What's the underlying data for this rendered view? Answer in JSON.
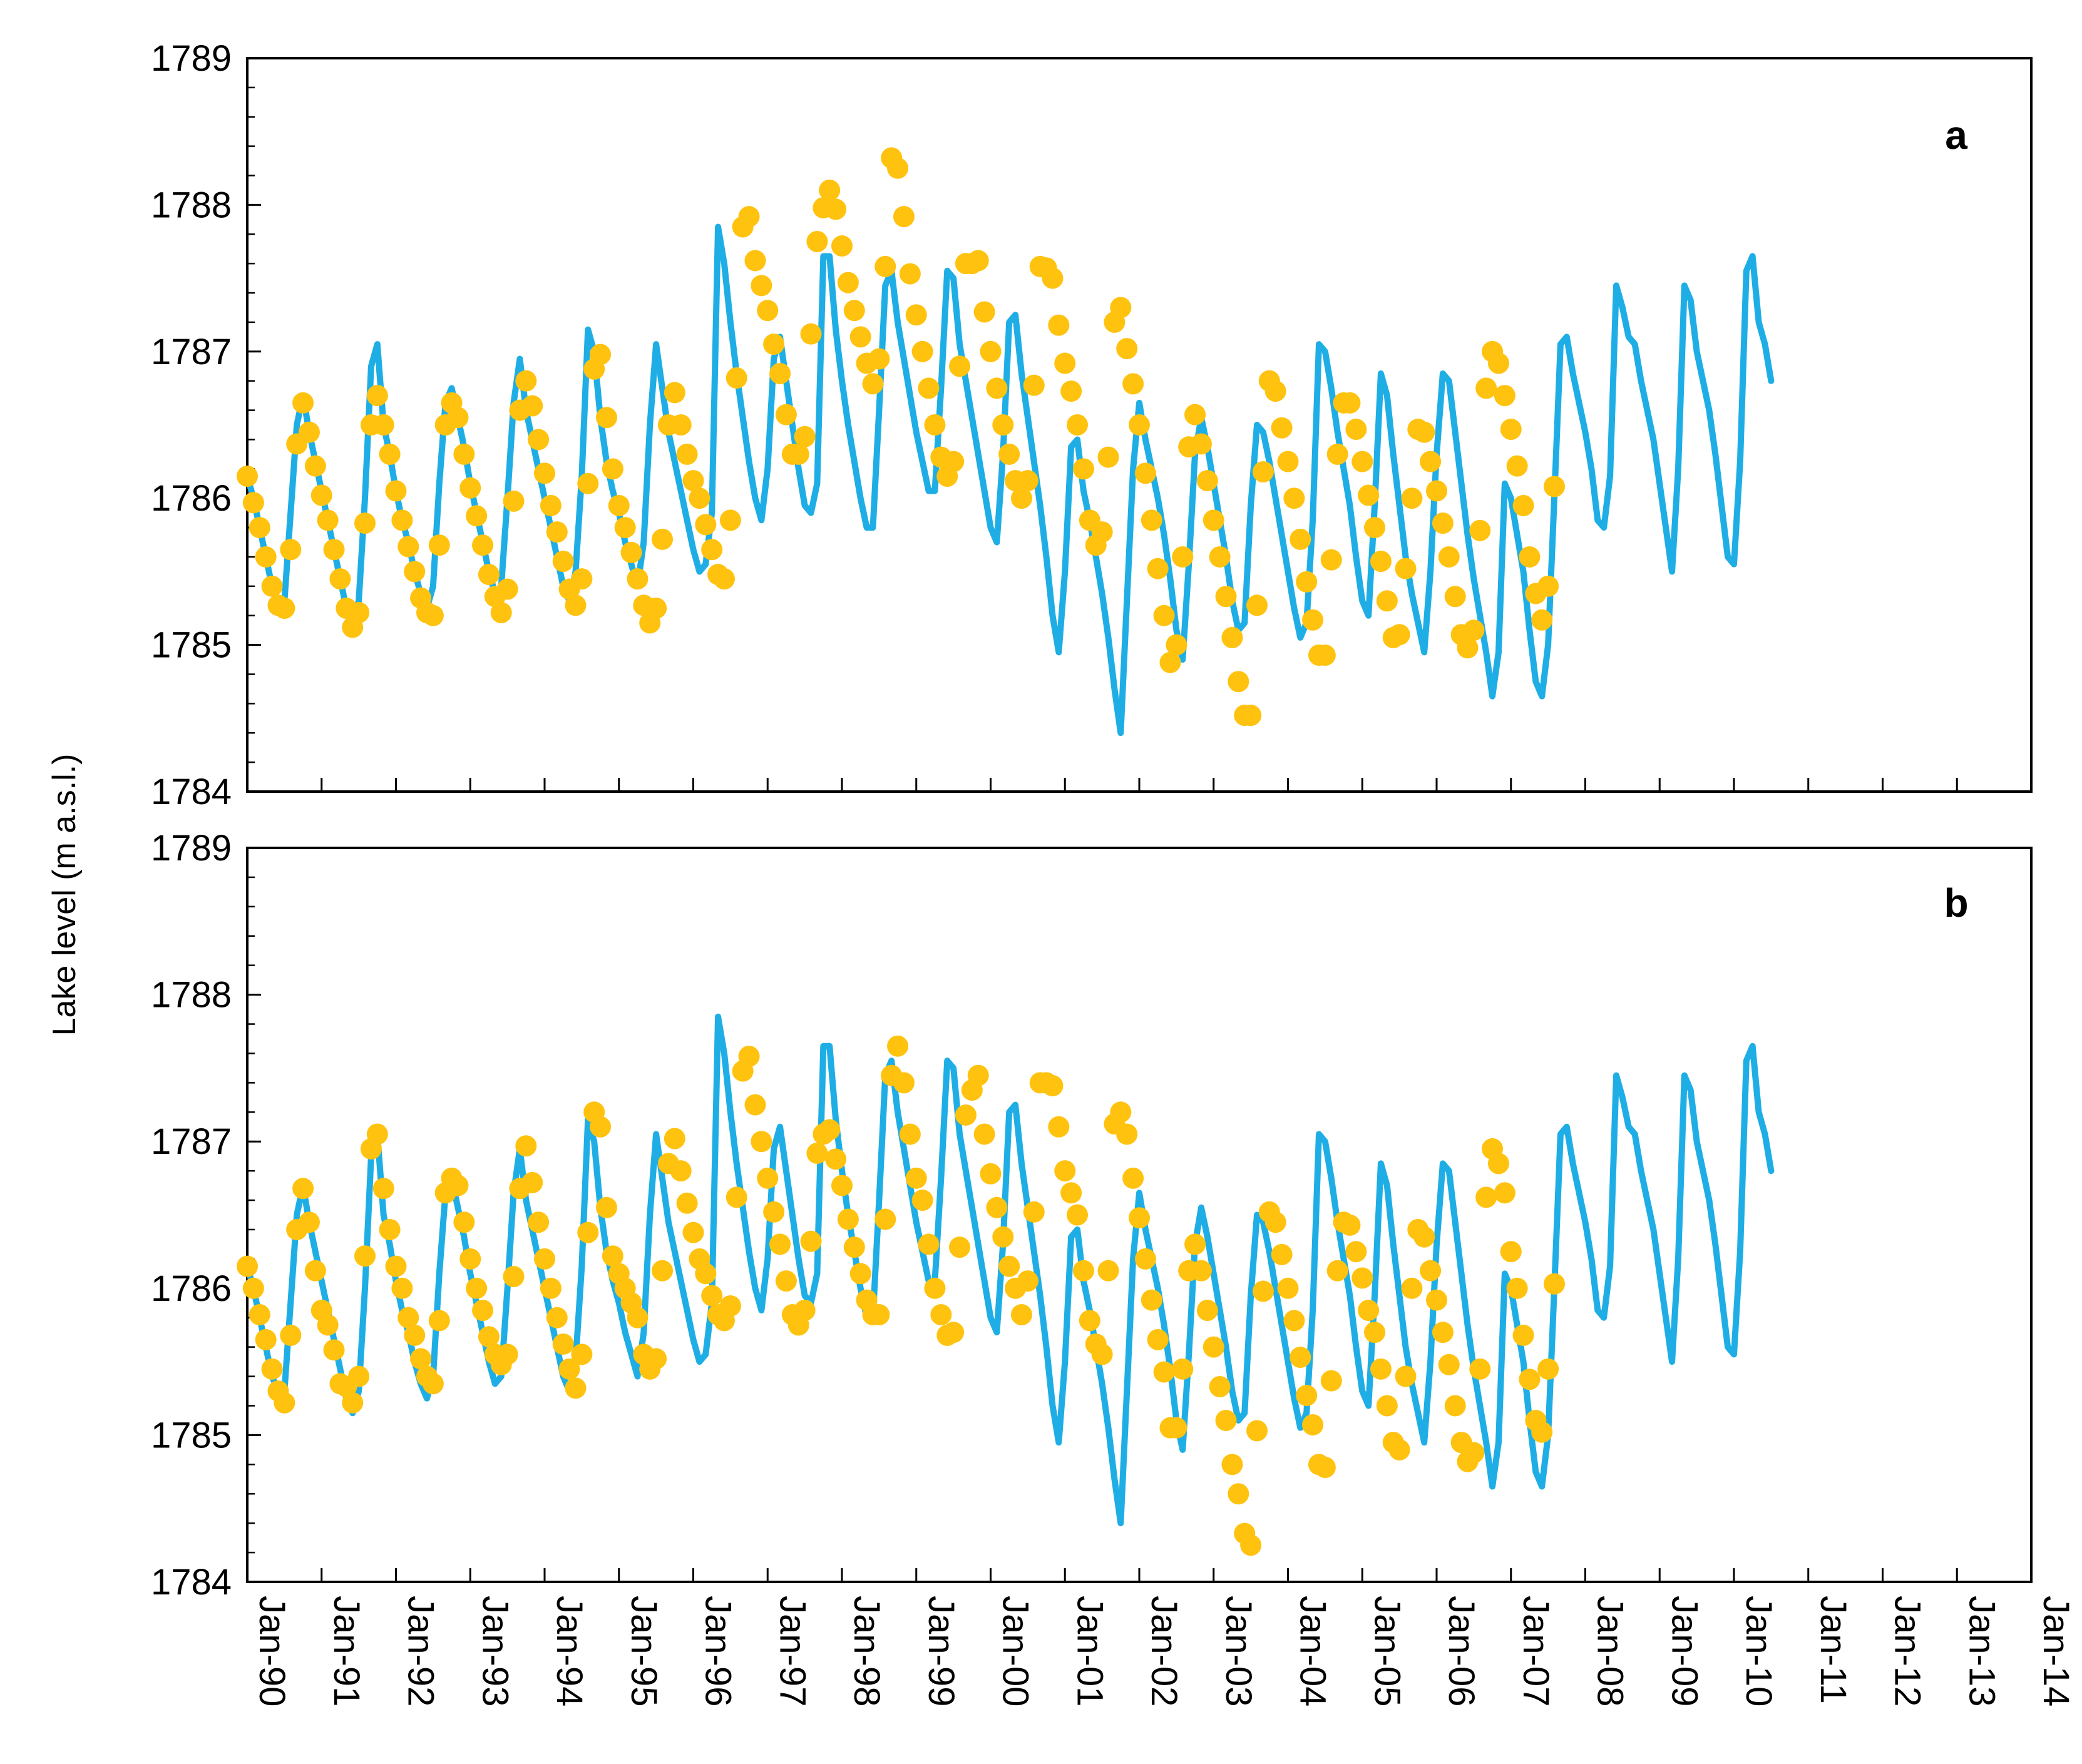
{
  "chart_data": {
    "type": "line",
    "ylabel": "Lake level (m a.s.l.)",
    "ylim": [
      1784,
      1789
    ],
    "yticks": [
      1784,
      1785,
      1786,
      1787,
      1788,
      1789
    ],
    "ytick_labels": [
      "1784",
      "1785",
      "1786",
      "1787",
      "1788",
      "1789"
    ],
    "xlim": [
      1990.0,
      2014.0
    ],
    "xtick_values": [
      1990,
      1991,
      1992,
      1993,
      1994,
      1995,
      1996,
      1997,
      1998,
      1999,
      2000,
      2001,
      2002,
      2003,
      2004,
      2005,
      2006,
      2007,
      2008,
      2009,
      2010,
      2011,
      2012,
      2013,
      2014
    ],
    "xtick_labels": [
      "Jan-90",
      "Jan-91",
      "Jan-92",
      "Jan-93",
      "Jan-94",
      "Jan-95",
      "Jan-96",
      "Jan-97",
      "Jan-98",
      "Jan-99",
      "Jan-00",
      "Jan-01",
      "Jan-02",
      "Jan-03",
      "Jan-04",
      "Jan-05",
      "Jan-06",
      "Jan-07",
      "Jan-08",
      "Jan-09",
      "Jan-10",
      "Jan-11",
      "Jan-12",
      "Jan-13",
      "Jan-14"
    ],
    "colors": {
      "line": "#1EAEE5",
      "points": "#FFC20E",
      "axis": "#000000"
    },
    "simulated_monthly": [
      1786.15,
      1786.0,
      1785.8,
      1785.6,
      1785.4,
      1785.3,
      1785.3,
      1785.9,
      1786.5,
      1786.7,
      1786.45,
      1786.25,
      1786.05,
      1785.85,
      1785.65,
      1785.45,
      1785.25,
      1785.15,
      1785.3,
      1786.0,
      1786.9,
      1787.05,
      1786.5,
      1786.3,
      1786.05,
      1785.85,
      1785.7,
      1785.5,
      1785.35,
      1785.25,
      1785.4,
      1786.1,
      1786.65,
      1786.75,
      1786.55,
      1786.35,
      1786.1,
      1785.9,
      1785.7,
      1785.5,
      1785.35,
      1785.4,
      1786.0,
      1786.65,
      1786.95,
      1786.6,
      1786.4,
      1786.2,
      1786.0,
      1785.8,
      1785.6,
      1785.4,
      1785.3,
      1785.5,
      1786.15,
      1787.15,
      1787.0,
      1786.55,
      1786.25,
      1786.05,
      1785.9,
      1785.7,
      1785.55,
      1785.4,
      1785.7,
      1786.5,
      1787.05,
      1786.75,
      1786.45,
      1786.25,
      1786.05,
      1785.85,
      1785.65,
      1785.5,
      1785.55,
      1785.9,
      1787.85,
      1787.6,
      1787.2,
      1786.85,
      1786.55,
      1786.25,
      1786.0,
      1785.85,
      1786.2,
      1786.95,
      1787.1,
      1786.8,
      1786.5,
      1786.2,
      1785.95,
      1785.9,
      1786.1,
      1787.65,
      1787.65,
      1787.15,
      1786.8,
      1786.5,
      1786.25,
      1786.0,
      1785.8,
      1785.8,
      1786.6,
      1787.45,
      1787.55,
      1787.2,
      1786.95,
      1786.7,
      1786.45,
      1786.25,
      1786.05,
      1786.05,
      1786.75,
      1787.55,
      1787.5,
      1787.05,
      1786.8,
      1786.55,
      1786.3,
      1786.05,
      1785.8,
      1785.7,
      1786.3,
      1787.2,
      1787.25,
      1786.85,
      1786.55,
      1786.25,
      1785.95,
      1785.6,
      1785.2,
      1784.95,
      1785.5,
      1786.35,
      1786.4,
      1786.05,
      1785.85,
      1785.6,
      1785.35,
      1785.05,
      1784.7,
      1784.4,
      1785.3,
      1786.2,
      1786.65,
      1786.4,
      1786.2,
      1786.0,
      1785.75,
      1785.45,
      1785.1,
      1784.9,
      1785.55,
      1786.3,
      1786.55,
      1786.35,
      1786.1,
      1785.85,
      1785.6,
      1785.3,
      1785.1,
      1785.15,
      1785.95,
      1786.5,
      1786.45,
      1786.25,
      1786.0,
      1785.75,
      1785.5,
      1785.25,
      1785.05,
      1785.15,
      1785.85,
      1787.05,
      1787.0,
      1786.75,
      1786.45,
      1786.2,
      1785.95,
      1785.6,
      1785.3,
      1785.2,
      1785.95,
      1786.85,
      1786.7,
      1786.3,
      1785.95,
      1785.6,
      1785.35,
      1785.15,
      1784.95,
      1785.5,
      1786.3,
      1786.85,
      1786.8,
      1786.45,
      1786.1,
      1785.75,
      1785.45,
      1785.2,
      1784.95,
      1784.65,
      1784.95,
      1786.1,
      1786.0,
      1785.75,
      1785.5,
      1785.1,
      1784.75,
      1784.65,
      1785.0,
      1786.0,
      1787.05,
      1787.1,
      1786.85,
      1786.65,
      1786.45,
      1786.2,
      1785.85,
      1785.8,
      1786.15,
      1787.45,
      1787.3,
      1787.1,
      1787.05,
      1786.8,
      1786.6,
      1786.4,
      1786.1,
      1785.8,
      1785.5,
      1786.2,
      1787.45,
      1787.35,
      1787.0,
      1786.8,
      1786.6,
      1786.3,
      1785.95,
      1785.6,
      1785.55,
      1786.25,
      1787.55,
      1787.65,
      1787.2,
      1787.05,
      1786.8
    ],
    "panels": [
      {
        "label": "a",
        "observed": [
          1786.15,
          1785.97,
          1785.8,
          1785.6,
          1785.4,
          1785.27,
          1785.25,
          1785.65,
          1786.37,
          1786.65,
          1786.45,
          1786.22,
          1786.02,
          1785.85,
          1785.65,
          1785.45,
          1785.25,
          1785.12,
          1785.22,
          1785.83,
          1786.5,
          1786.7,
          1786.5,
          1786.3,
          1786.05,
          1785.85,
          1785.67,
          1785.5,
          1785.32,
          1785.22,
          1785.2,
          1785.68,
          1786.5,
          1786.65,
          1786.55,
          1786.3,
          1786.07,
          1785.88,
          1785.68,
          1785.48,
          1785.33,
          1785.22,
          1785.38,
          1785.98,
          1786.6,
          1786.8,
          1786.63,
          1786.4,
          1786.17,
          1785.95,
          1785.77,
          1785.57,
          1785.38,
          1785.27,
          1785.45,
          1786.1,
          1786.88,
          1786.98,
          1786.55,
          1786.2,
          1785.95,
          1785.8,
          1785.63,
          1785.45,
          1785.27,
          1785.15,
          1785.25,
          1785.72,
          1786.5,
          1786.72,
          1786.5,
          1786.3,
          1786.12,
          1786.0,
          1785.82,
          1785.65,
          1785.48,
          1785.45,
          1785.85,
          1786.82,
          1787.85,
          1787.92,
          1787.62,
          1787.45,
          1787.28,
          1787.05,
          1786.85,
          1786.57,
          1786.3,
          1786.3,
          1786.42,
          1787.12,
          1787.75,
          1787.98,
          1788.1,
          1787.97,
          1787.72,
          1787.47,
          1787.28,
          1787.1,
          1786.92,
          1786.78,
          1786.95,
          1787.58,
          1788.32,
          1788.25,
          1787.92,
          1787.53,
          1787.25,
          1787.0,
          1786.75,
          1786.5,
          1786.28,
          1786.15,
          1786.25,
          1786.9,
          1787.6,
          1787.6,
          1787.62,
          1787.27,
          1787.0,
          1786.75,
          1786.5,
          1786.3,
          1786.12,
          1786.0,
          1786.12,
          1786.77,
          1787.58,
          1787.57,
          1787.5,
          1787.18,
          1786.92,
          1786.73,
          1786.5,
          1786.2,
          1785.85,
          1785.68,
          1785.77,
          1786.28,
          1787.2,
          1787.3,
          1787.02,
          1786.78,
          1786.5,
          1786.17,
          1785.85,
          1785.52,
          1785.2,
          1784.88,
          1785.0,
          1785.6,
          1786.35,
          1786.57,
          1786.37,
          1786.12,
          1785.85,
          1785.6,
          1785.33,
          1785.05,
          1784.75,
          1784.52,
          1784.52,
          1785.27,
          1786.18,
          1786.8,
          1786.73,
          1786.48,
          1786.25,
          1786.0,
          1785.72,
          1785.43,
          1785.17,
          1784.93,
          1784.93,
          1785.58,
          1786.3,
          1786.65,
          1786.65,
          1786.47,
          1786.25,
          1786.02,
          1785.8,
          1785.57,
          1785.3,
          1785.05,
          1785.07,
          1785.52,
          1786.0,
          1786.47,
          1786.45,
          1786.25,
          1786.05,
          1785.83,
          1785.6,
          1785.33,
          1785.07,
          1784.98,
          1785.1,
          1785.78,
          1786.75,
          1787.0,
          1786.92,
          1786.7,
          1786.47,
          1786.22,
          1785.95,
          1785.6,
          1785.35,
          1785.17,
          1785.4,
          1786.08
        ]
      },
      {
        "label": "b",
        "observed": [
          1786.15,
          1786.0,
          1785.82,
          1785.65,
          1785.45,
          1785.3,
          1785.22,
          1785.68,
          1786.4,
          1786.68,
          1786.45,
          1786.12,
          1785.85,
          1785.75,
          1785.58,
          1785.35,
          1785.33,
          1785.22,
          1785.4,
          1786.22,
          1786.95,
          1787.05,
          1786.68,
          1786.4,
          1786.15,
          1786.0,
          1785.8,
          1785.68,
          1785.52,
          1785.4,
          1785.35,
          1785.78,
          1786.65,
          1786.75,
          1786.7,
          1786.45,
          1786.2,
          1786.0,
          1785.85,
          1785.67,
          1785.55,
          1785.48,
          1785.55,
          1786.08,
          1786.68,
          1786.97,
          1786.72,
          1786.45,
          1786.2,
          1786.0,
          1785.8,
          1785.62,
          1785.45,
          1785.32,
          1785.55,
          1786.38,
          1787.2,
          1787.1,
          1786.55,
          1786.22,
          1786.1,
          1786.0,
          1785.9,
          1785.8,
          1785.55,
          1785.45,
          1785.52,
          1786.12,
          1786.85,
          1787.02,
          1786.8,
          1786.58,
          1786.38,
          1786.2,
          1786.1,
          1785.95,
          1785.82,
          1785.78,
          1785.88,
          1786.62,
          1787.48,
          1787.58,
          1787.25,
          1787.0,
          1786.75,
          1786.52,
          1786.3,
          1786.05,
          1785.82,
          1785.75,
          1785.85,
          1786.32,
          1786.92,
          1787.05,
          1787.08,
          1786.88,
          1786.7,
          1786.47,
          1786.28,
          1786.1,
          1785.92,
          1785.82,
          1785.82,
          1786.47,
          1787.45,
          1787.65,
          1787.4,
          1787.05,
          1786.75,
          1786.6,
          1786.3,
          1786.0,
          1785.82,
          1785.68,
          1785.7,
          1786.28,
          1787.18,
          1787.35,
          1787.45,
          1787.05,
          1786.78,
          1786.55,
          1786.35,
          1786.15,
          1786.0,
          1785.82,
          1786.05,
          1786.52,
          1787.4,
          1787.4,
          1787.38,
          1787.1,
          1786.8,
          1786.65,
          1786.5,
          1786.12,
          1785.78,
          1785.62,
          1785.55,
          1786.12,
          1787.12,
          1787.2,
          1787.05,
          1786.75,
          1786.48,
          1786.2,
          1785.92,
          1785.65,
          1785.43,
          1785.05,
          1785.05,
          1785.45,
          1786.12,
          1786.3,
          1786.12,
          1785.85,
          1785.6,
          1785.33,
          1785.1,
          1784.8,
          1784.6,
          1784.33,
          1784.25,
          1785.03,
          1785.98,
          1786.52,
          1786.45,
          1786.23,
          1786.0,
          1785.78,
          1785.53,
          1785.27,
          1785.07,
          1784.8,
          1784.78,
          1785.37,
          1786.12,
          1786.45,
          1786.43,
          1786.25,
          1786.07,
          1785.85,
          1785.7,
          1785.45,
          1785.2,
          1784.95,
          1784.9,
          1785.4,
          1786.0,
          1786.4,
          1786.35,
          1786.12,
          1785.92,
          1785.7,
          1785.48,
          1785.2,
          1784.95,
          1784.82,
          1784.88,
          1785.45,
          1786.62,
          1786.95,
          1786.85,
          1786.65,
          1786.25,
          1786.0,
          1785.68,
          1785.38,
          1785.1,
          1785.02,
          1785.45,
          1786.03
        ]
      }
    ]
  }
}
